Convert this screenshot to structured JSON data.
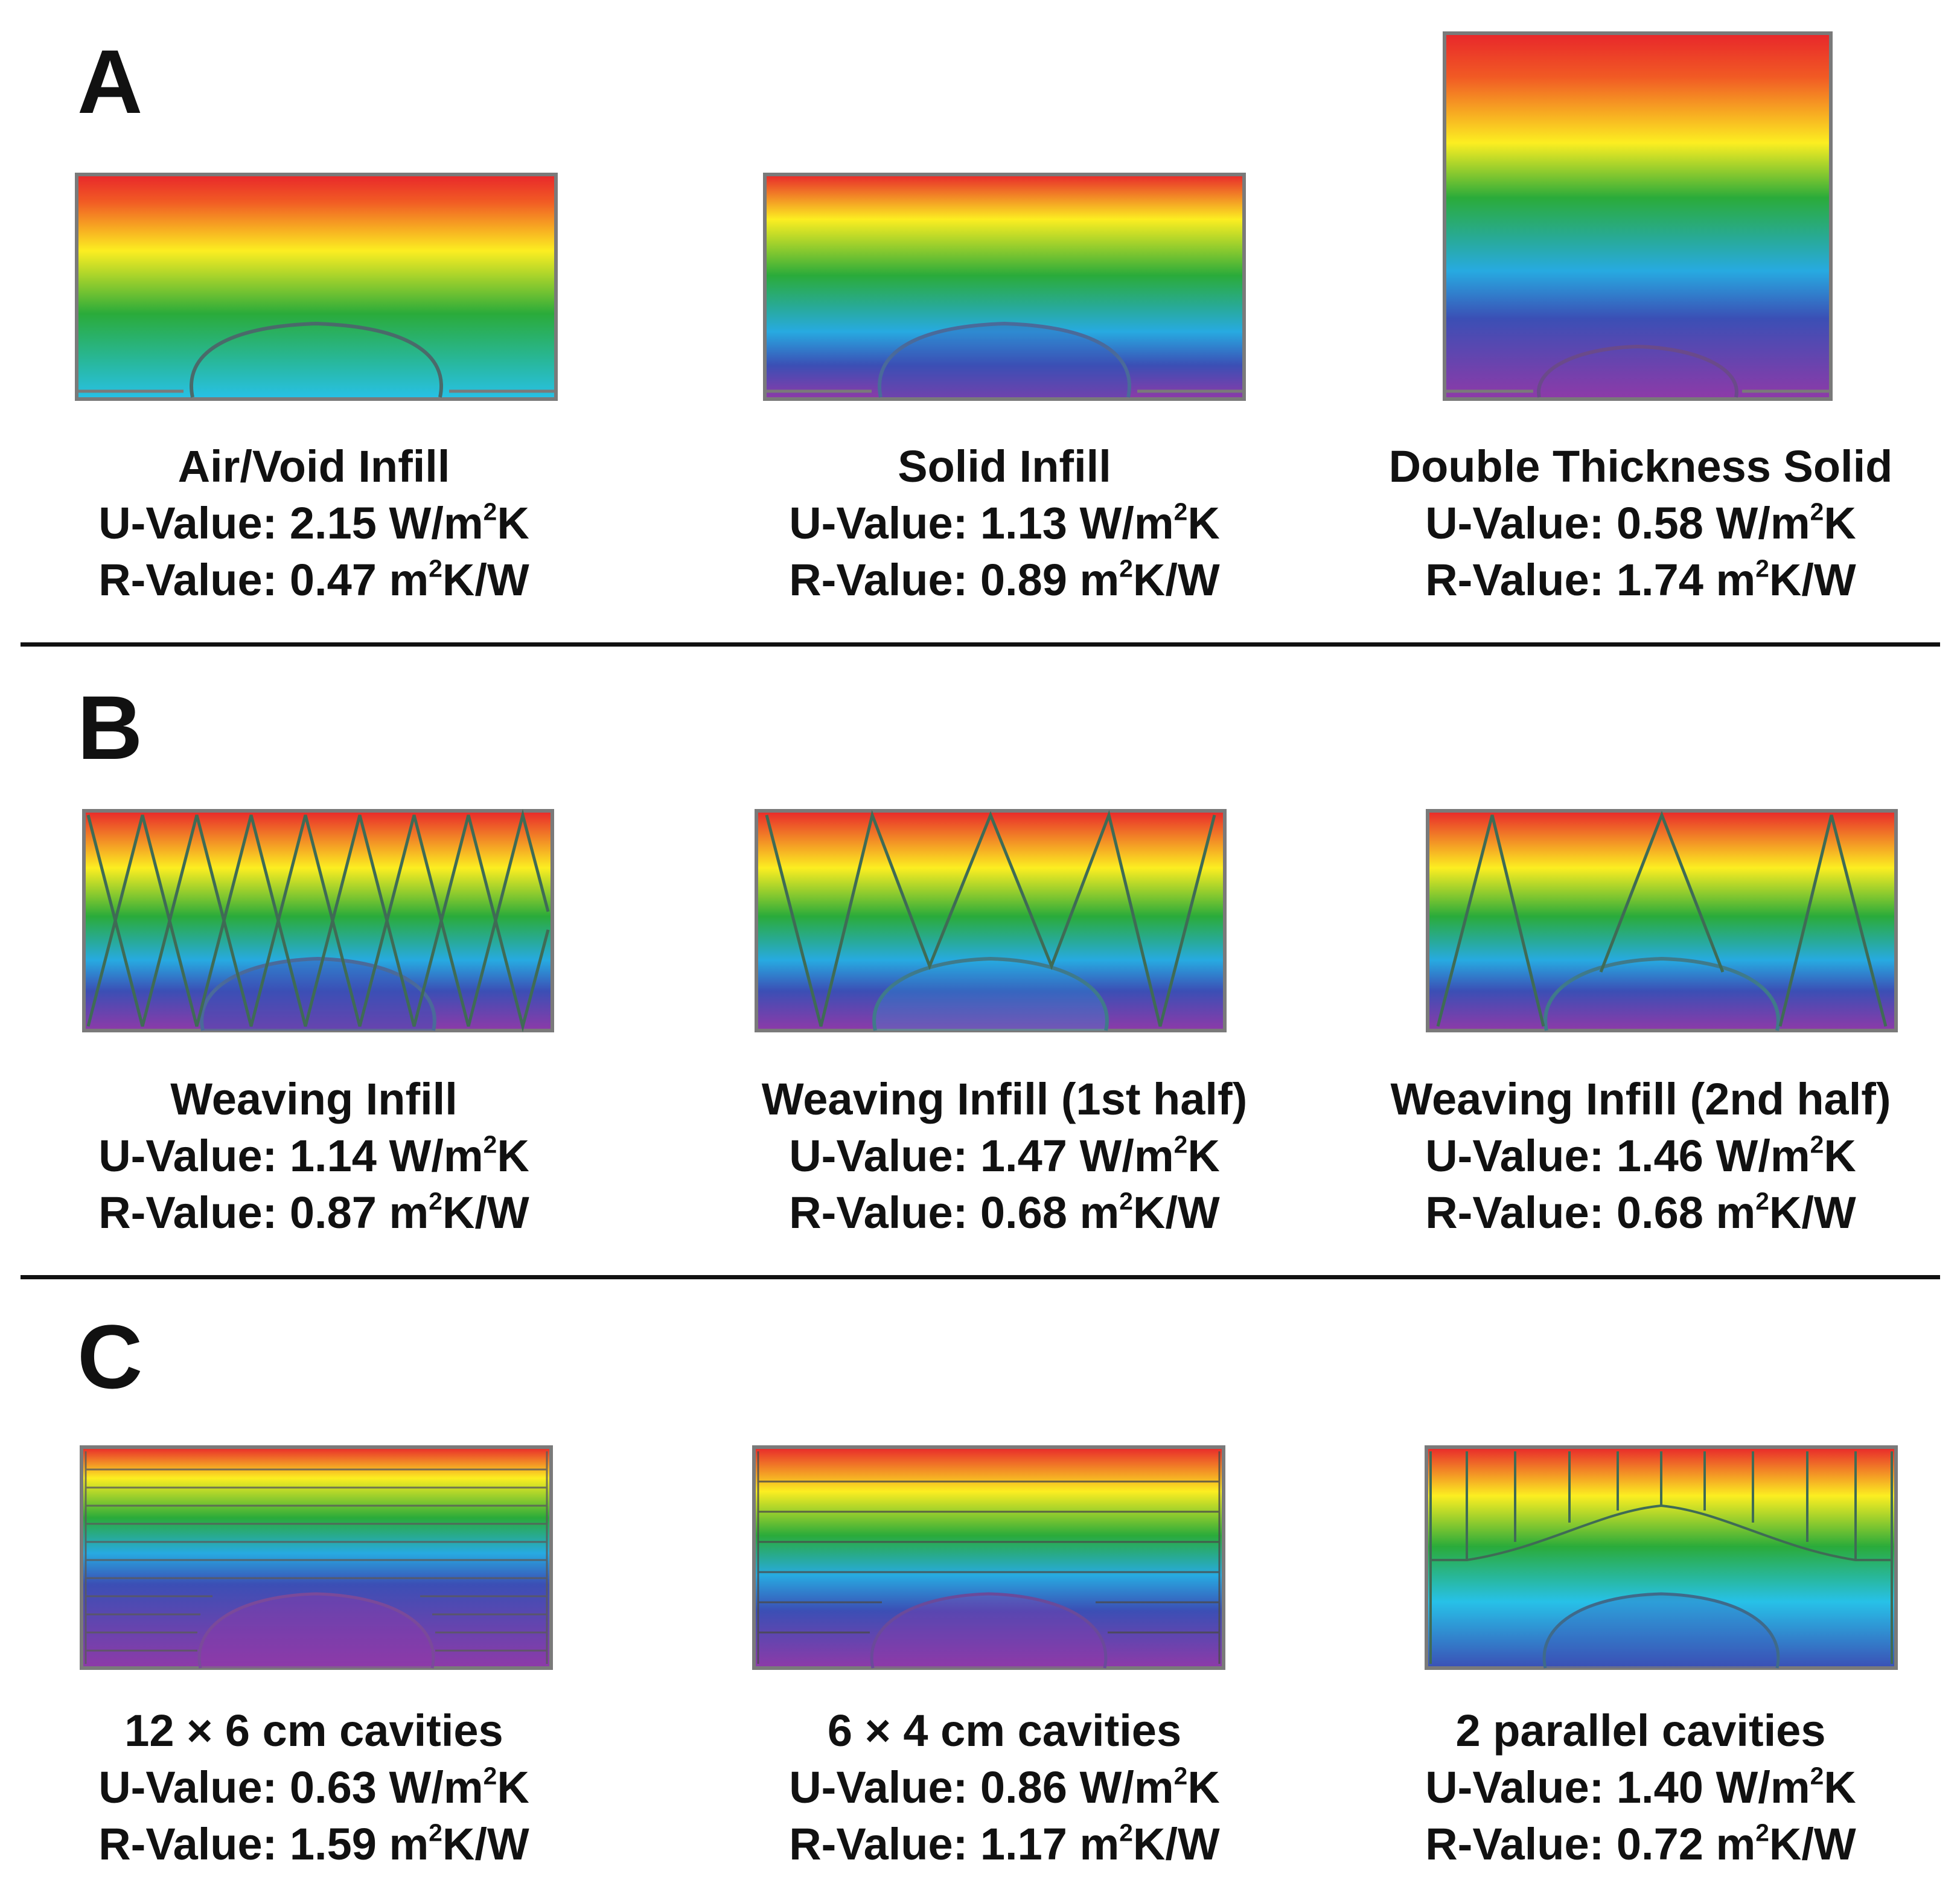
{
  "sections": [
    {
      "letter": "A",
      "panels": [
        {
          "title": "Air/Void Infill",
          "u_label": "U-Value: ",
          "u_value": "2.15",
          "u_unit_pre": " W/m",
          "u_unit_post": "K",
          "r_label": "R-Value: ",
          "r_value": "0.47",
          "r_unit_pre": " m",
          "r_unit_post": "K/W",
          "exponent": "2"
        },
        {
          "title": "Solid Infill",
          "u_label": "U-Value: ",
          "u_value": "1.13",
          "u_unit_pre": " W/m",
          "u_unit_post": "K",
          "r_label": "R-Value: ",
          "r_value": "0.89",
          "r_unit_pre": " m",
          "r_unit_post": "K/W",
          "exponent": "2"
        },
        {
          "title": "Double Thickness Solid",
          "u_label": "U-Value: ",
          "u_value": "0.58",
          "u_unit_pre": " W/m",
          "u_unit_post": "K",
          "r_label": "R-Value: ",
          "r_value": "1.74",
          "r_unit_pre": " m",
          "r_unit_post": "K/W",
          "exponent": "2"
        }
      ]
    },
    {
      "letter": "B",
      "panels": [
        {
          "title": "Weaving Infill",
          "u_label": "U-Value: ",
          "u_value": "1.14",
          "u_unit_pre": " W/m",
          "u_unit_post": "K",
          "r_label": "R-Value: ",
          "r_value": "0.87",
          "r_unit_pre": " m",
          "r_unit_post": "K/W",
          "exponent": "2"
        },
        {
          "title": "Weaving Infill (1st half)",
          "u_label": "U-Value: ",
          "u_value": "1.47",
          "u_unit_pre": " W/m",
          "u_unit_post": "K",
          "r_label": "R-Value: ",
          "r_value": "0.68",
          "r_unit_pre": " m",
          "r_unit_post": "K/W",
          "exponent": "2"
        },
        {
          "title": "Weaving Infill (2nd half)",
          "u_label": "U-Value: ",
          "u_value": "1.46",
          "u_unit_pre": " W/m",
          "u_unit_post": "K",
          "r_label": "R-Value: ",
          "r_value": "0.68",
          "r_unit_pre": " m",
          "r_unit_post": "K/W",
          "exponent": "2"
        }
      ]
    },
    {
      "letter": "C",
      "panels": [
        {
          "title": "12 × 6 cm cavities",
          "u_label": "U-Value: ",
          "u_value": "0.63",
          "u_unit_pre": " W/m",
          "u_unit_post": "K",
          "r_label": "R-Value: ",
          "r_value": "1.59",
          "r_unit_pre": " m",
          "r_unit_post": "K/W",
          "exponent": "2"
        },
        {
          "title": "6 × 4 cm cavities",
          "u_label": "U-Value: ",
          "u_value": "0.86",
          "u_unit_pre": " W/m",
          "u_unit_post": "K",
          "r_label": "R-Value: ",
          "r_value": "1.17",
          "r_unit_pre": " m",
          "r_unit_post": "K/W",
          "exponent": "2"
        },
        {
          "title": "2 parallel cavities",
          "u_label": "U-Value: ",
          "u_value": "1.40",
          "u_unit_pre": " W/m",
          "u_unit_post": "K",
          "r_label": "R-Value: ",
          "r_value": "0.72",
          "r_unit_pre": " m",
          "r_unit_post": "K/W",
          "exponent": "2"
        }
      ]
    }
  ],
  "colors": {
    "hot": "#e8262b",
    "warm": "#fcee21",
    "mid": "#2aab3a",
    "cool": "#27aae1",
    "cold": "#3b4fb5",
    "coldest": "#8e3aa8",
    "outline": "#7a7a7a",
    "text": "#111111"
  }
}
